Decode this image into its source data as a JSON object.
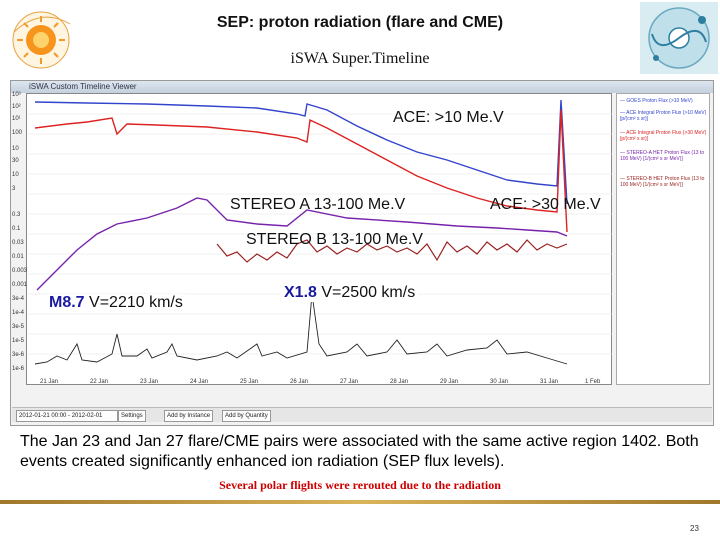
{
  "header": {
    "title": "SEP: proton radiation (flare and CME)",
    "subtitle": "iSWA Super.Timeline"
  },
  "window": {
    "title": "iSWA Custom Timeline Viewer",
    "legend_items": [
      "— GOES Proton Flux (>10 MeV)",
      "— ACE Integral Proton Flux (>10 MeV) [p/(cm² s sr)]",
      "— ACE Integral Proton Flux (>30 MeV) [p/(cm² s sr)]",
      "— STEREO-A HET Proton Flux (13 to 100 MeV) [1/(cm² s sr MeV)]",
      "— STEREO-B HET Proton Flux (13 to 100 MeV) [1/(cm² s sr MeV)]"
    ],
    "y_ticks_top": [
      "10³",
      "10²",
      "10¹",
      "100",
      "10",
      "30",
      "10",
      "3"
    ],
    "y_ticks_bottom": [
      "0.3",
      "0.1",
      "0.03",
      "0.01",
      "0.003",
      "0.001",
      "3e-4",
      "1e-4",
      "3e-5",
      "1e-5",
      "3e-6",
      "1e-6"
    ],
    "x_ticks": [
      "21 Jan",
      "22 Jan",
      "23 Jan",
      "24 Jan",
      "25 Jan",
      "26 Jan",
      "27 Jan",
      "28 Jan",
      "29 Jan",
      "30 Jan",
      "31 Jan",
      "1 Feb"
    ],
    "status": {
      "time_range": "2012-01-21 00:00 - 2012-02-01",
      "settings": "Settings",
      "add_by_instance": "Add by Instance",
      "add_by_quantity": "Add by Quantity"
    }
  },
  "annotations": {
    "ace10": "ACE: >10 Me.V",
    "ace30": "ACE: >30 Me.V",
    "stereo_a": "STEREO A 13-100 Me.V",
    "stereo_b": "STEREO B 13-100 Me.V",
    "flare1_class": "M8.7",
    "flare1_speed": "V=2210 km/s",
    "flare2_class": "X1.8",
    "flare2_speed": "V=2500 km/s"
  },
  "body": {
    "text": "The Jan 23 and Jan 27 flare/CME pairs were associated with the same active region 1402. Both events created significantly enhanced ion radiation (SEP flux levels).",
    "note": "Several polar flights were rerouted due to the radiation",
    "page_number": "23"
  },
  "colors": {
    "blue": "#3344cc",
    "red": "#dd2222",
    "purple": "#7722aa",
    "darkred": "#992222",
    "black": "#222222",
    "flare_blue": "#1a1aa0"
  }
}
